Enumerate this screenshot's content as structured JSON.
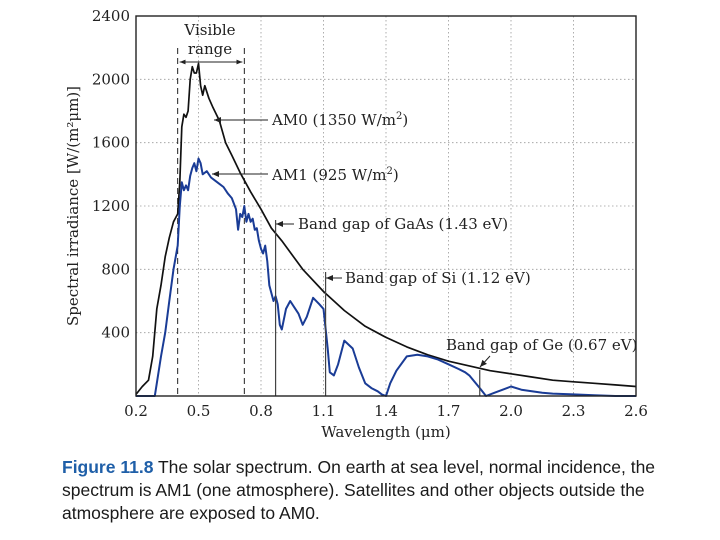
{
  "chart_data": {
    "type": "line",
    "xlabel": "Wavelength (μm)",
    "ylabel": "Spectral irradiance [W/(m²μm)]",
    "xlim": [
      0.2,
      2.6
    ],
    "ylim": [
      0,
      2400
    ],
    "x_ticks": [
      "0.2",
      "0.5",
      "0.8",
      "1.1",
      "1.4",
      "1.7",
      "2.0",
      "2.3",
      "2.6"
    ],
    "y_ticks": [
      "400",
      "800",
      "1200",
      "1600",
      "2000",
      "2400"
    ],
    "visible_range": {
      "label_line1": "Visible",
      "label_line2": "range",
      "x_start": 0.4,
      "x_end": 0.72
    },
    "series": [
      {
        "name": "AM0",
        "label_text": "AM0 (1350 W/m",
        "label_sup": "2",
        "label_close": ")",
        "color": "#111111",
        "x": [
          0.2,
          0.23,
          0.26,
          0.28,
          0.3,
          0.32,
          0.34,
          0.36,
          0.38,
          0.4,
          0.41,
          0.42,
          0.43,
          0.44,
          0.45,
          0.46,
          0.47,
          0.48,
          0.49,
          0.5,
          0.51,
          0.52,
          0.53,
          0.55,
          0.57,
          0.6,
          0.63,
          0.66,
          0.7,
          0.75,
          0.8,
          0.85,
          0.9,
          0.95,
          1.0,
          1.1,
          1.2,
          1.3,
          1.4,
          1.5,
          1.6,
          1.7,
          1.8,
          1.9,
          2.0,
          2.1,
          2.2,
          2.3,
          2.4,
          2.5,
          2.6
        ],
        "y": [
          10,
          60,
          100,
          250,
          550,
          700,
          880,
          1000,
          1100,
          1150,
          1350,
          1700,
          1780,
          1760,
          1800,
          2000,
          2080,
          2040,
          2040,
          2100,
          1960,
          1900,
          1960,
          1880,
          1820,
          1740,
          1600,
          1520,
          1410,
          1290,
          1180,
          1060,
          980,
          890,
          800,
          660,
          540,
          440,
          370,
          310,
          260,
          220,
          190,
          160,
          140,
          120,
          100,
          90,
          80,
          70,
          60
        ]
      },
      {
        "name": "AM1",
        "label_text": "AM1 (925 W/m",
        "label_sup": "2",
        "label_close": ")",
        "color": "#1a3c96",
        "x": [
          0.2,
          0.29,
          0.3,
          0.32,
          0.34,
          0.36,
          0.38,
          0.4,
          0.41,
          0.42,
          0.43,
          0.44,
          0.45,
          0.46,
          0.47,
          0.48,
          0.49,
          0.5,
          0.51,
          0.52,
          0.54,
          0.56,
          0.58,
          0.6,
          0.62,
          0.64,
          0.66,
          0.68,
          0.69,
          0.7,
          0.71,
          0.72,
          0.73,
          0.74,
          0.75,
          0.76,
          0.77,
          0.78,
          0.79,
          0.8,
          0.81,
          0.82,
          0.83,
          0.84,
          0.85,
          0.86,
          0.87,
          0.88,
          0.89,
          0.9,
          0.92,
          0.94,
          0.96,
          0.98,
          1.0,
          1.02,
          1.05,
          1.08,
          1.1,
          1.12,
          1.13,
          1.15,
          1.17,
          1.2,
          1.24,
          1.27,
          1.3,
          1.33,
          1.36,
          1.38,
          1.4,
          1.42,
          1.45,
          1.5,
          1.55,
          1.6,
          1.65,
          1.7,
          1.75,
          1.78,
          1.8,
          1.85,
          1.88,
          1.92,
          1.96,
          2.0,
          2.05,
          2.1,
          2.15,
          2.2,
          2.3,
          2.4,
          2.5,
          2.6
        ],
        "y": [
          0,
          0,
          80,
          250,
          400,
          600,
          800,
          950,
          1200,
          1350,
          1300,
          1330,
          1300,
          1390,
          1440,
          1470,
          1420,
          1500,
          1470,
          1400,
          1420,
          1380,
          1360,
          1340,
          1320,
          1280,
          1250,
          1180,
          1050,
          1150,
          1130,
          1200,
          1100,
          1150,
          1100,
          1120,
          1050,
          1060,
          980,
          930,
          900,
          950,
          850,
          700,
          650,
          600,
          630,
          580,
          450,
          420,
          550,
          600,
          560,
          520,
          450,
          500,
          620,
          580,
          550,
          300,
          150,
          130,
          200,
          350,
          300,
          180,
          80,
          50,
          30,
          10,
          0,
          80,
          160,
          250,
          260,
          250,
          230,
          200,
          170,
          150,
          130,
          50,
          0,
          20,
          40,
          60,
          40,
          30,
          20,
          15,
          10,
          5,
          0,
          0
        ]
      }
    ],
    "band_gaps": [
      {
        "name": "GaAs",
        "label": "Band gap of GaAs (1.43 eV)",
        "x": 0.87
      },
      {
        "name": "Si",
        "label": "Band gap of Si (1.12 eV)",
        "x": 1.11
      },
      {
        "name": "Ge",
        "label": "Band gap of Ge (0.67 eV)",
        "x": 1.85
      }
    ]
  },
  "caption": {
    "figure_number": "Figure 11.8",
    "text": " The solar spectrum. On earth at sea level, normal incidence, the spectrum is AM1 (one atmosphere). Satellites and other objects outside the atmosphere are exposed to AM0."
  }
}
